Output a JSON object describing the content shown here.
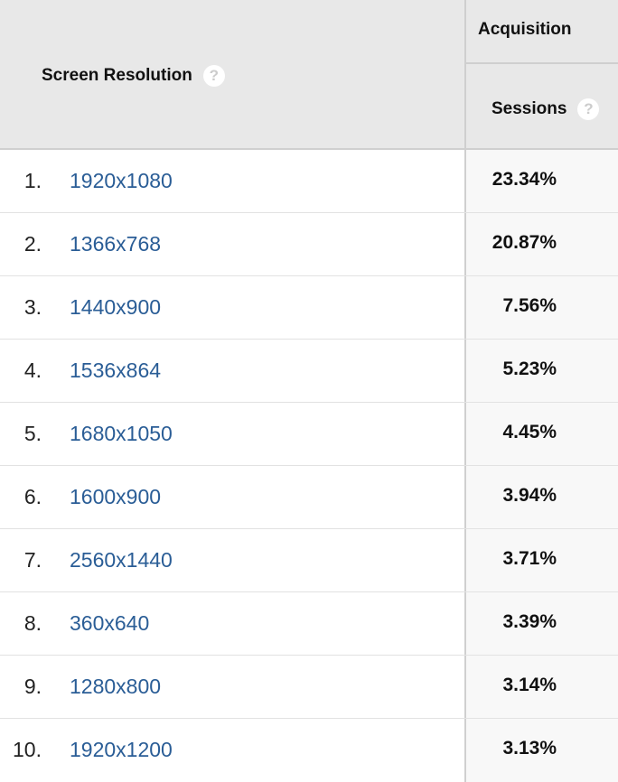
{
  "header": {
    "dimension_label": "Screen Resolution",
    "group_label": "Acquisition",
    "metric_label": "Sessions",
    "help_glyph": "?"
  },
  "rows": [
    {
      "rank": "1.",
      "resolution": "1920x1080",
      "sessions": "23.34%"
    },
    {
      "rank": "2.",
      "resolution": "1366x768",
      "sessions": "20.87%"
    },
    {
      "rank": "3.",
      "resolution": "1440x900",
      "sessions": "7.56%"
    },
    {
      "rank": "4.",
      "resolution": "1536x864",
      "sessions": "5.23%"
    },
    {
      "rank": "5.",
      "resolution": "1680x1050",
      "sessions": "4.45%"
    },
    {
      "rank": "6.",
      "resolution": "1600x900",
      "sessions": "3.94%"
    },
    {
      "rank": "7.",
      "resolution": "2560x1440",
      "sessions": "3.71%"
    },
    {
      "rank": "8.",
      "resolution": "360x640",
      "sessions": "3.39%"
    },
    {
      "rank": "9.",
      "resolution": "1280x800",
      "sessions": "3.14%"
    },
    {
      "rank": "10.",
      "resolution": "1920x1200",
      "sessions": "3.13%"
    }
  ],
  "colors": {
    "link": "#2a5d96",
    "header_bg": "#e8e8e8"
  }
}
